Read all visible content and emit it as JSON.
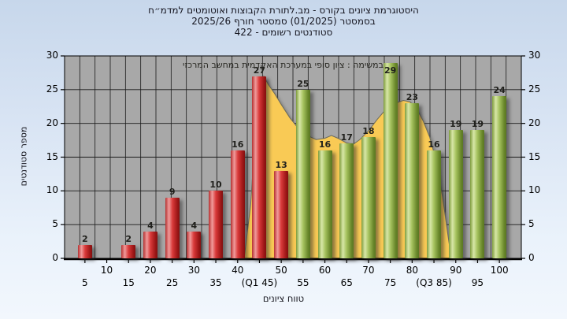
{
  "chart_data": {
    "type": "bar",
    "title_lines": [
      "היסטוגרמת ציונים בקורס - מב.לתורת הקבוצות ואוטומטים למדמ״ח",
      "בסמסטר  (01/2025)  סמסטר חורף 2025/26",
      "סטודנטים רשומים - 422"
    ],
    "annotation": "במשימה : ציון סופי במערכת האקדמית במחשב המרכזי",
    "xlabel": "טווח ציונים",
    "ylabel": "מספר סטודנטים",
    "ylim": [
      0,
      30
    ],
    "ytick_step": 5,
    "grid": true,
    "legend": "none",
    "categories": [
      5,
      10,
      15,
      20,
      25,
      30,
      35,
      40,
      45,
      50,
      55,
      60,
      65,
      70,
      75,
      80,
      85,
      90,
      95,
      100
    ],
    "bars": [
      {
        "x": 5,
        "value": 2,
        "group": "fail"
      },
      {
        "x": 10,
        "value": 0,
        "group": "fail"
      },
      {
        "x": 15,
        "value": 2,
        "group": "fail"
      },
      {
        "x": 20,
        "value": 4,
        "group": "fail"
      },
      {
        "x": 25,
        "value": 9,
        "group": "fail"
      },
      {
        "x": 30,
        "value": 4,
        "group": "fail"
      },
      {
        "x": 35,
        "value": 10,
        "group": "fail"
      },
      {
        "x": 40,
        "value": 16,
        "group": "fail"
      },
      {
        "x": 45,
        "value": 27,
        "group": "fail"
      },
      {
        "x": 50,
        "value": 13,
        "group": "fail"
      },
      {
        "x": 55,
        "value": 25,
        "group": "pass"
      },
      {
        "x": 60,
        "value": 16,
        "group": "pass"
      },
      {
        "x": 65,
        "value": 17,
        "group": "pass"
      },
      {
        "x": 70,
        "value": 18,
        "group": "pass"
      },
      {
        "x": 75,
        "value": 29,
        "group": "pass"
      },
      {
        "x": 80,
        "value": 23,
        "group": "pass"
      },
      {
        "x": 85,
        "value": 16,
        "group": "pass"
      },
      {
        "x": 90,
        "value": 19,
        "group": "pass"
      },
      {
        "x": 95,
        "value": 19,
        "group": "pass"
      },
      {
        "x": 100,
        "value": 24,
        "group": "pass"
      }
    ],
    "x_tick_labels_row1": [
      "10",
      "20",
      "30",
      "40",
      "50",
      "60",
      "70",
      "80",
      "90",
      "100"
    ],
    "x_tick_labels_row2": [
      "5",
      "15",
      "25",
      "35",
      "(Q1 45)",
      "55",
      "65",
      "75",
      "(Q3 85)",
      "95"
    ],
    "smoothed_curve": {
      "label": "smoothed-grade-distribution-area",
      "points": [
        [
          41.5,
          0
        ],
        [
          43,
          8
        ],
        [
          44,
          18
        ],
        [
          45,
          25.5
        ],
        [
          46,
          27
        ],
        [
          47,
          25.8
        ],
        [
          48.5,
          24.4
        ],
        [
          50,
          22.8
        ],
        [
          52,
          20.8
        ],
        [
          54,
          19.2
        ],
        [
          56,
          18.2
        ],
        [
          58,
          17.6
        ],
        [
          60,
          17.8
        ],
        [
          61.5,
          18.2
        ],
        [
          63,
          17.8
        ],
        [
          65,
          17.1
        ],
        [
          66.5,
          16.9
        ],
        [
          68,
          17.6
        ],
        [
          70,
          18.9
        ],
        [
          72,
          20.6
        ],
        [
          74,
          22.1
        ],
        [
          76,
          23
        ],
        [
          78,
          23.4
        ],
        [
          79.5,
          23.2
        ],
        [
          81,
          22.2
        ],
        [
          82.5,
          20.4
        ],
        [
          84,
          18
        ],
        [
          85.5,
          14.5
        ],
        [
          87,
          9
        ],
        [
          88.3,
          3
        ],
        [
          89,
          0
        ]
      ]
    },
    "colors": {
      "fail_bar": "#d43333",
      "pass_bar": "#a0c258",
      "curve_fill": "#f9ca55",
      "curve_line": "#6b6b5e",
      "plot_bg": "#a8a8a8",
      "grid": "#1a1a1a",
      "page_top": "#c7d7eb",
      "page_bottom": "#f2f7fd",
      "text": "#1a1a22"
    }
  }
}
